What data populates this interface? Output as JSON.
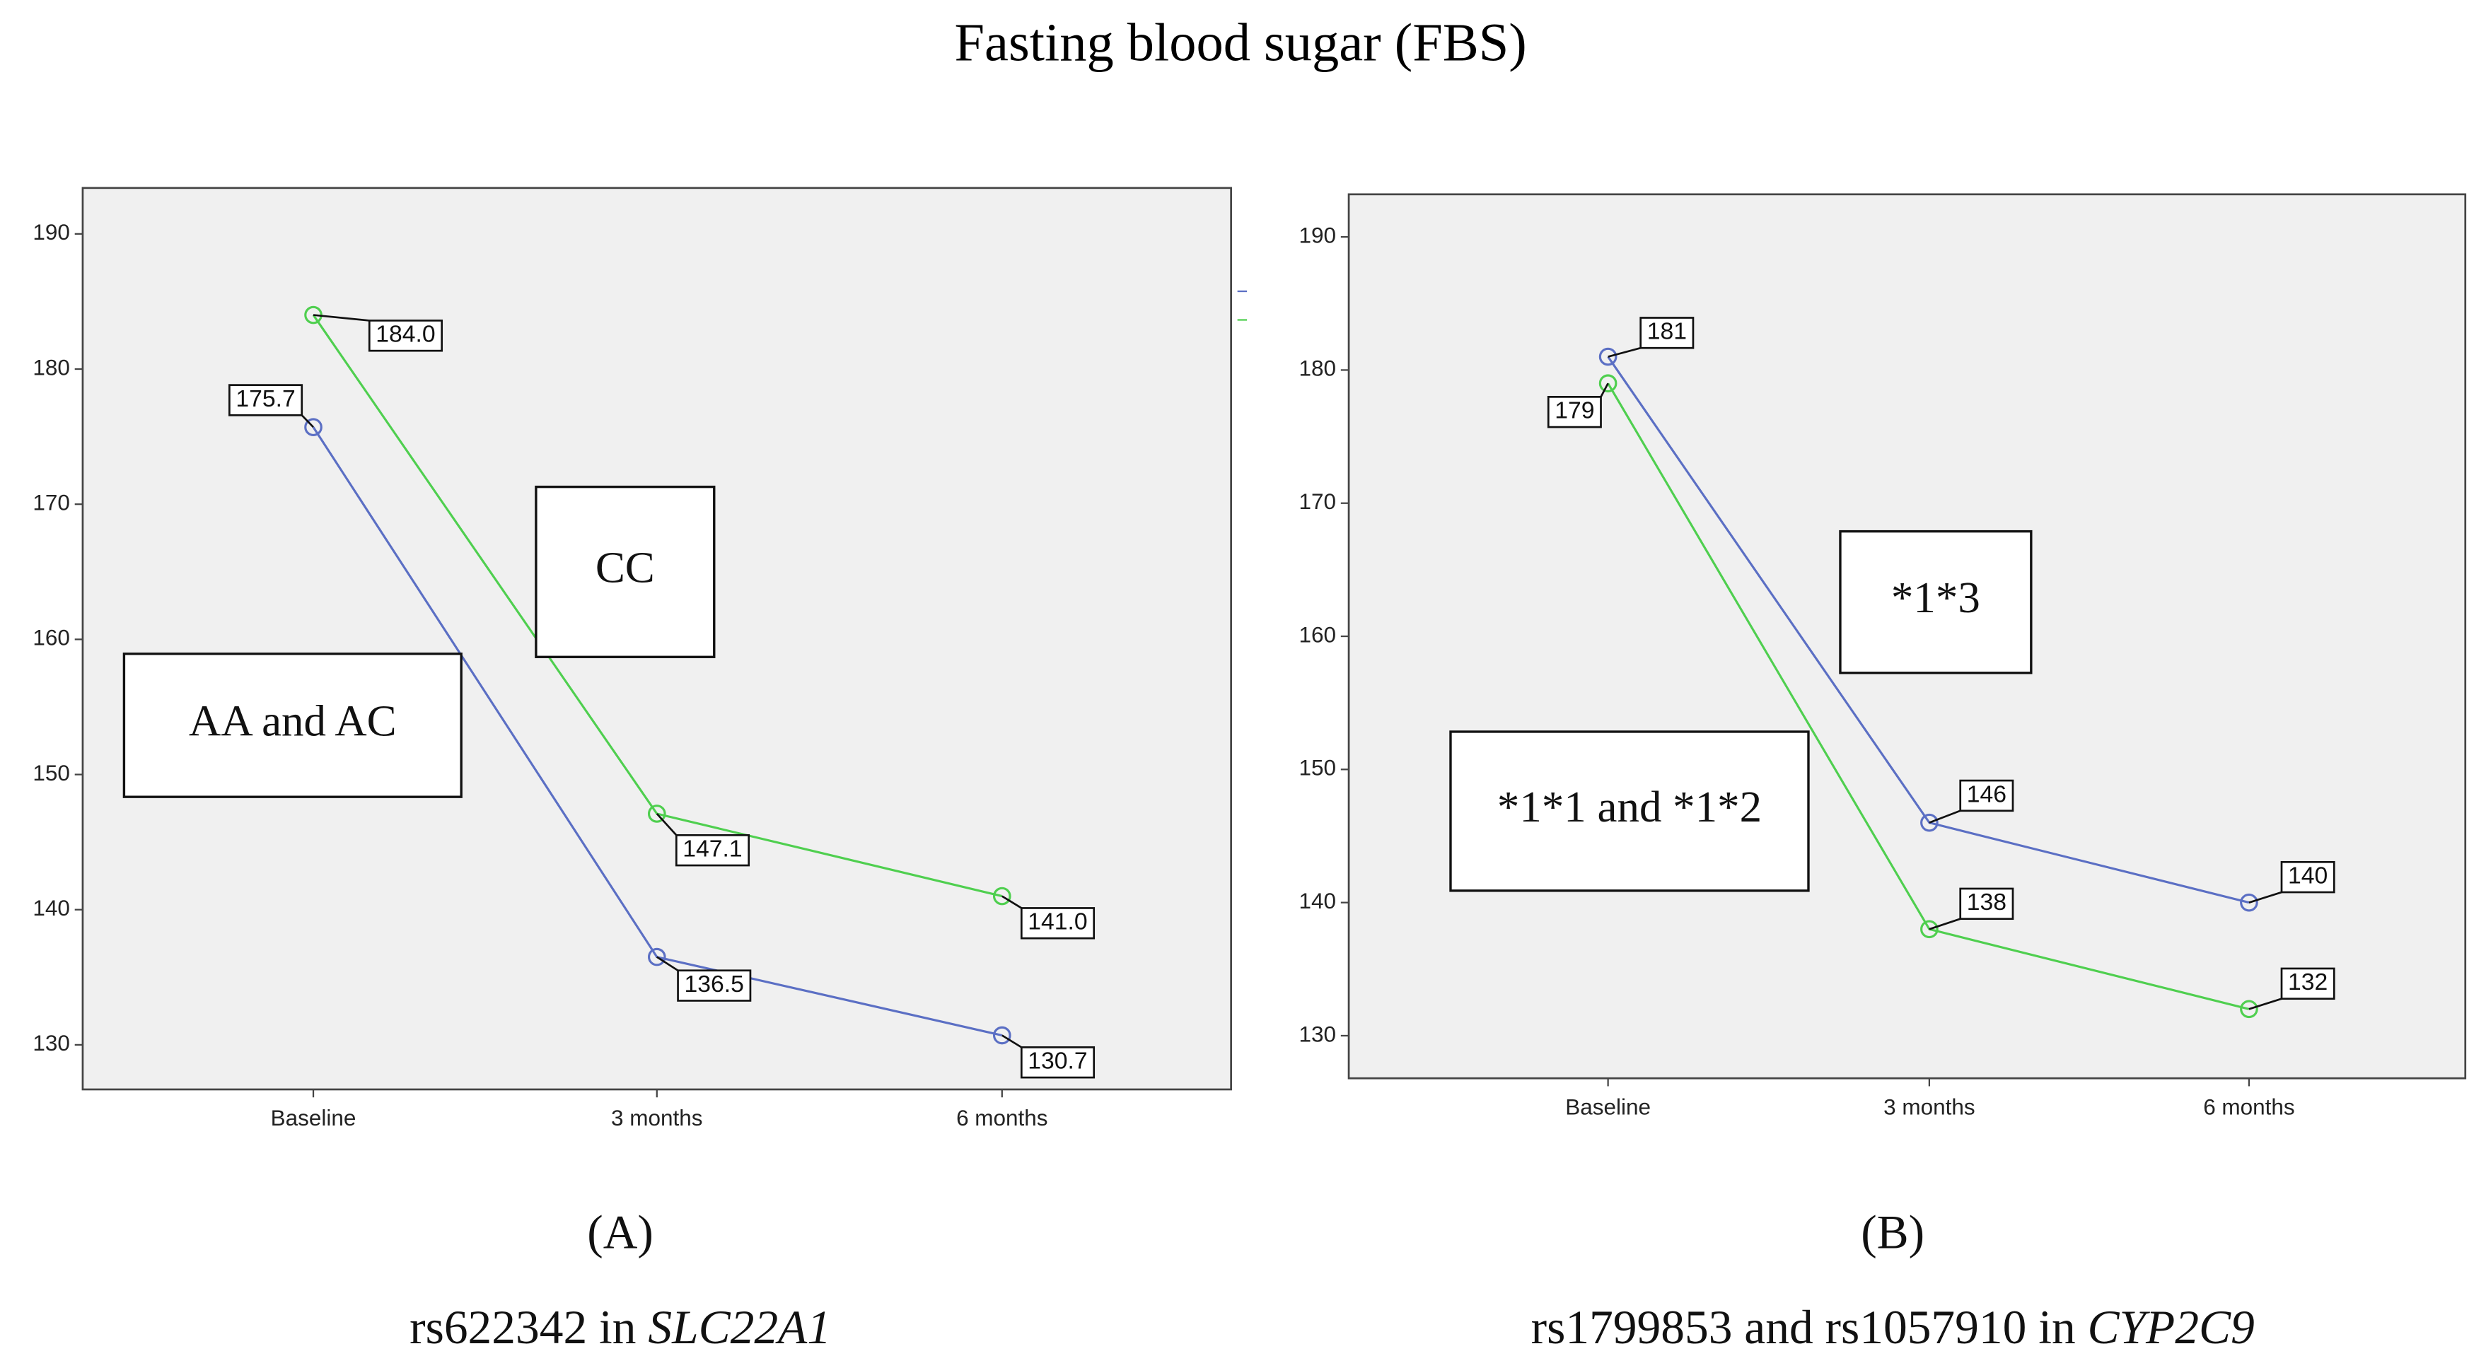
{
  "title": "Fasting blood sugar (FBS)",
  "chart_data": [
    {
      "type": "line",
      "panel": "(A)",
      "caption": {
        "text": "rs622342 in ",
        "gene": "SLC22A1"
      },
      "categories": [
        "Baseline",
        "3 months",
        "6 months"
      ],
      "series": [
        {
          "name": "AA and AC",
          "color": "#5b6fc4",
          "values": [
            175.7,
            136.5,
            130.7
          ],
          "value_labels": [
            "175.7",
            "136.5",
            "130.7"
          ]
        },
        {
          "name": "CC",
          "color": "#4fcf4f",
          "values": [
            184,
            147.1,
            141
          ],
          "value_labels": [
            "184.0",
            "147.1",
            "141.0"
          ]
        }
      ],
      "ylim": [
        126.7,
        193.4
      ],
      "yticks": [
        130,
        140,
        150,
        160,
        170,
        180,
        190
      ]
    },
    {
      "type": "line",
      "panel": "(B)",
      "caption": {
        "text": "rs1799853 and rs1057910 in ",
        "gene": "CYP2C9"
      },
      "categories": [
        "Baseline",
        "3 months",
        "6 months"
      ],
      "series": [
        {
          "name": "*1*3",
          "color": "#5b6fc4",
          "values": [
            181,
            146,
            140
          ]
        },
        {
          "name": "*1*1 and *1*2",
          "color": "#4fcf4f",
          "values": [
            179,
            138,
            132
          ]
        }
      ],
      "ylim": [
        126.8,
        193.2
      ],
      "yticks": [
        130,
        140,
        150,
        160,
        170,
        180,
        190
      ]
    }
  ]
}
